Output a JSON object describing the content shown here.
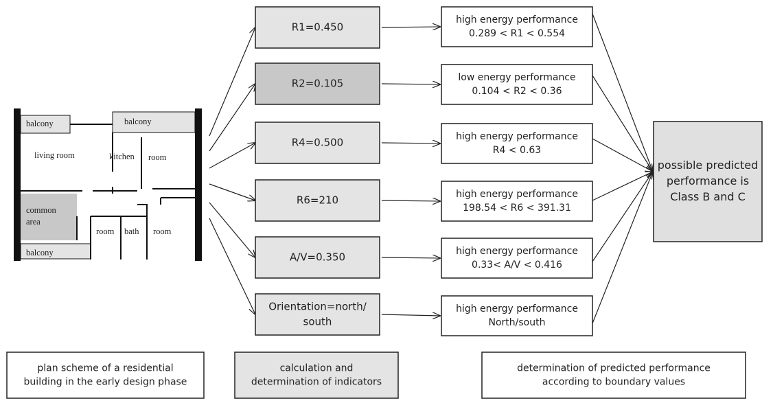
{
  "plan": {
    "labels": [
      "balcony",
      "balcony",
      "living room",
      "kitchen",
      "room",
      "common",
      "area",
      "room",
      "bath",
      "room",
      "balcony"
    ]
  },
  "indicators": [
    [
      "R1=0.450"
    ],
    [
      "R2=0.105"
    ],
    [
      "R4=0.500"
    ],
    [
      "R6=210"
    ],
    [
      "A/V=0.350"
    ],
    [
      "Orientation=north/",
      "south"
    ]
  ],
  "results": [
    [
      "high energy performance",
      "0.289 < R1 < 0.554"
    ],
    [
      "low energy performance",
      "0.104 < R2 < 0.36"
    ],
    [
      "high energy performance",
      "R4 < 0.63"
    ],
    [
      "high energy performance",
      "198.54 < R6 < 391.31"
    ],
    [
      "high energy performance",
      "0.33< A/V < 0.416"
    ],
    [
      "high energy performance",
      "North/south"
    ]
  ],
  "final": [
    "possible predicted",
    "performance is",
    "Class B and C"
  ],
  "captions": [
    [
      "plan scheme of a residential",
      "building in the early design phase"
    ],
    [
      "calculation and",
      "determination of indicators"
    ],
    [
      "determination of predicted performance",
      "according to boundary values"
    ]
  ]
}
